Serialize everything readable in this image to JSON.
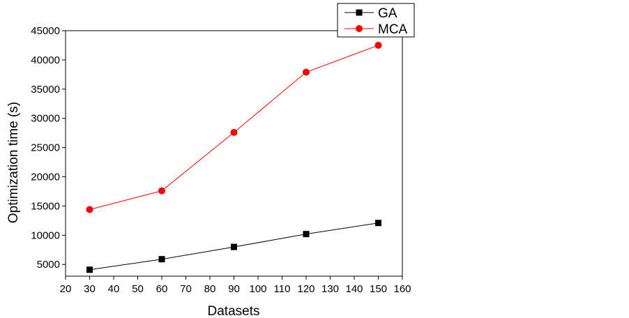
{
  "chart_data": {
    "type": "line",
    "title": "",
    "xlabel": "Datasets",
    "ylabel": "Optimization time (s)",
    "xlim": [
      20,
      160
    ],
    "ylim": [
      3000,
      45000
    ],
    "x_ticks": [
      20,
      30,
      40,
      50,
      60,
      70,
      80,
      90,
      100,
      110,
      120,
      130,
      140,
      150,
      160
    ],
    "y_ticks": [
      5000,
      10000,
      15000,
      20000,
      25000,
      30000,
      35000,
      40000,
      45000
    ],
    "x": [
      30,
      60,
      90,
      120,
      150
    ],
    "series": [
      {
        "name": "GA",
        "values": [
          4100,
          5900,
          8000,
          10200,
          12100
        ],
        "color": "#000000",
        "marker": "square"
      },
      {
        "name": "MCA",
        "values": [
          14400,
          17600,
          27600,
          37900,
          42500
        ],
        "color": "#ff0000",
        "marker": "circle"
      }
    ],
    "legend_position": "top-right",
    "grid": false
  }
}
